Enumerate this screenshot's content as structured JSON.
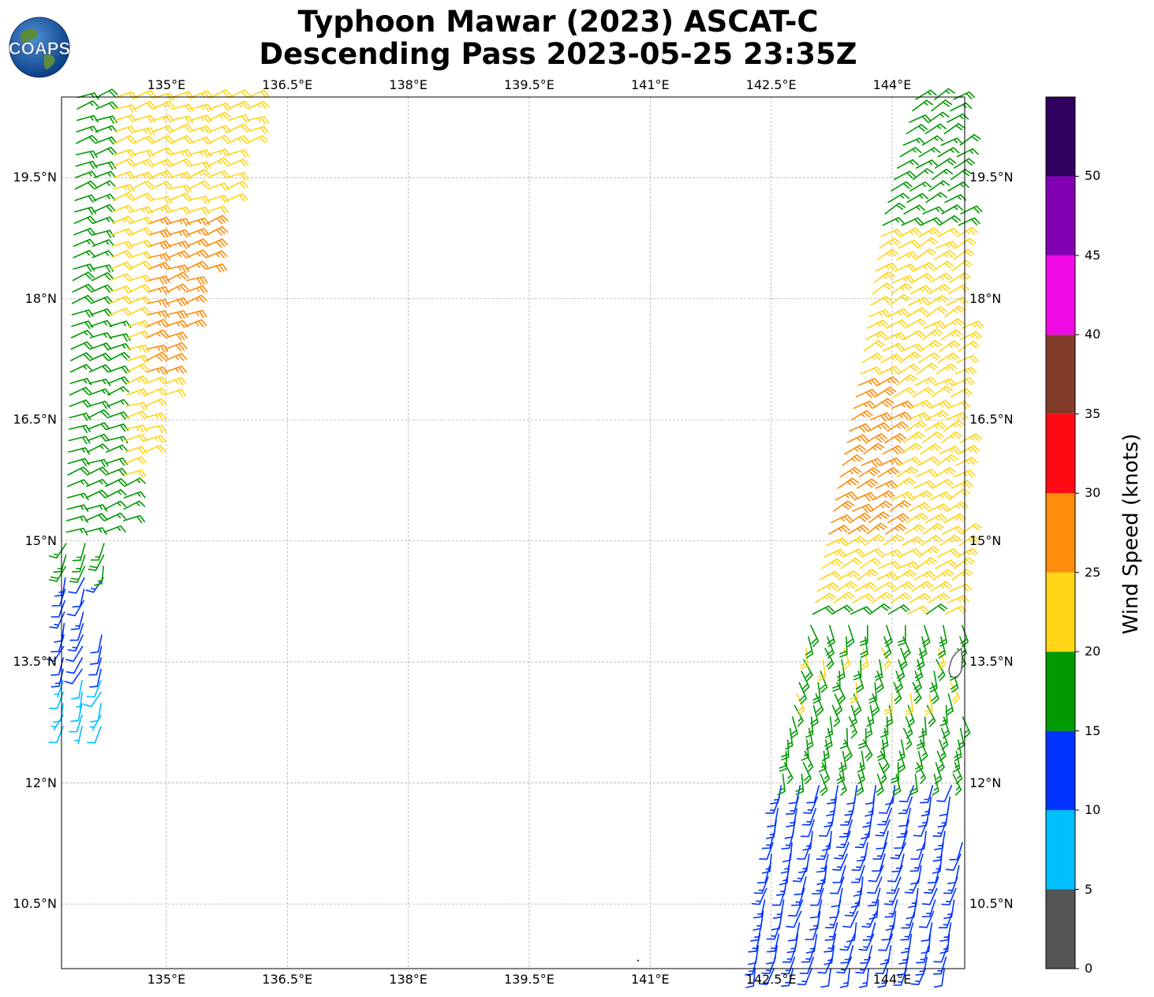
{
  "title_line1": "Typhoon Mawar (2023) ASCAT-C",
  "title_line2": "Descending Pass 2023-05-25 23:35Z",
  "logo_text": "COAPS",
  "colorbar": {
    "title": "Wind Speed (knots)",
    "bins": [
      {
        "min": 0,
        "max": 5,
        "color": "#555555"
      },
      {
        "min": 5,
        "max": 10,
        "color": "#00bfff"
      },
      {
        "min": 10,
        "max": 15,
        "color": "#0033ff"
      },
      {
        "min": 15,
        "max": 20,
        "color": "#009900"
      },
      {
        "min": 20,
        "max": 25,
        "color": "#ffd516"
      },
      {
        "min": 25,
        "max": 30,
        "color": "#ff8c0a"
      },
      {
        "min": 30,
        "max": 35,
        "color": "#ff0a14"
      },
      {
        "min": 35,
        "max": 40,
        "color": "#823c2a"
      },
      {
        "min": 40,
        "max": 45,
        "color": "#f00ae6"
      },
      {
        "min": 45,
        "max": 50,
        "color": "#8200b4"
      },
      {
        "min": 50,
        "max": 55,
        "color": "#2f005f"
      }
    ],
    "tick_labels": [
      "0",
      "5",
      "10",
      "15",
      "20",
      "25",
      "30",
      "35",
      "40",
      "45",
      "50"
    ]
  },
  "chart_data": {
    "type": "scatter",
    "subtype": "wind-barb-map",
    "lon_range": [
      133.7,
      144.9
    ],
    "lat_range": [
      9.7,
      20.5
    ],
    "lon_ticks": [
      135.0,
      136.5,
      138.0,
      139.5,
      141.0,
      142.5,
      144.0
    ],
    "lat_ticks": [
      10.5,
      12.0,
      13.5,
      15.0,
      16.5,
      18.0,
      19.5
    ],
    "lon_tick_labels": [
      "135°E",
      "136.5°E",
      "138°E",
      "139.5°E",
      "141°E",
      "142.5°E",
      "144°E"
    ],
    "lat_tick_labels": [
      "10.5°N",
      "12°N",
      "13.5°N",
      "15°N",
      "16.5°N",
      "18°N",
      "19.5°N"
    ],
    "grid": true,
    "swaths": [
      {
        "name": "west",
        "bottom_lat": 12.7,
        "top_lat": 20.5,
        "left_edge": [
          [
            12.7,
            133.7
          ],
          [
            20.5,
            133.9
          ]
        ],
        "right_edge": [
          [
            14.4,
            134.2
          ],
          [
            16.5,
            134.9
          ],
          [
            20.5,
            136.2
          ]
        ]
      },
      {
        "name": "east",
        "bottom_lat": 9.7,
        "top_lat": 20.5,
        "left_edge": [
          [
            9.7,
            142.3
          ],
          [
            12.5,
            142.7
          ],
          [
            15.0,
            143.2
          ],
          [
            17.0,
            143.6
          ],
          [
            19.0,
            143.9
          ],
          [
            20.5,
            144.3
          ]
        ],
        "right_edge": [
          [
            9.7,
            144.9
          ],
          [
            20.5,
            144.9
          ]
        ]
      }
    ],
    "wind_regions": [
      {
        "swath": "west",
        "lat_min": 12.7,
        "lat_max": 13.3,
        "knots": 8
      },
      {
        "swath": "west",
        "lat_min": 13.3,
        "lat_max": 14.6,
        "knots": 12
      },
      {
        "swath": "west",
        "lat_min": 14.6,
        "lat_max": 15.8,
        "knots": 17
      },
      {
        "swath": "west",
        "lat_min": 15.8,
        "lat_max": 20.5,
        "knots": 22
      },
      {
        "swath": "east",
        "lat_min": 9.7,
        "lat_max": 12.0,
        "knots": 13
      },
      {
        "swath": "east",
        "lat_min": 12.0,
        "lat_max": 13.0,
        "knots": 17
      },
      {
        "swath": "east",
        "lat_min": 13.0,
        "lat_max": 14.2,
        "knots": 19
      },
      {
        "swath": "east",
        "lat_min": 14.2,
        "lat_max": 18.8,
        "knots": 23
      },
      {
        "swath": "east",
        "lat_min": 18.8,
        "lat_max": 20.5,
        "knots": 17
      }
    ],
    "wind_pockets": [
      {
        "lat_min": 15.0,
        "lat_max": 17.0,
        "lon_min": 143.2,
        "lon_max": 144.0,
        "knots": 27
      },
      {
        "lat_min": 17.0,
        "lat_max": 19.0,
        "lon_min": 134.7,
        "lon_max": 135.7,
        "knots": 27
      },
      {
        "lat_min": 15.8,
        "lat_max": 20.5,
        "lon_min": 133.7,
        "lon_max": 134.3,
        "knots": 18
      }
    ],
    "land": [
      {
        "name": "Guam",
        "lat": 13.45,
        "lon": 144.78
      }
    ]
  }
}
